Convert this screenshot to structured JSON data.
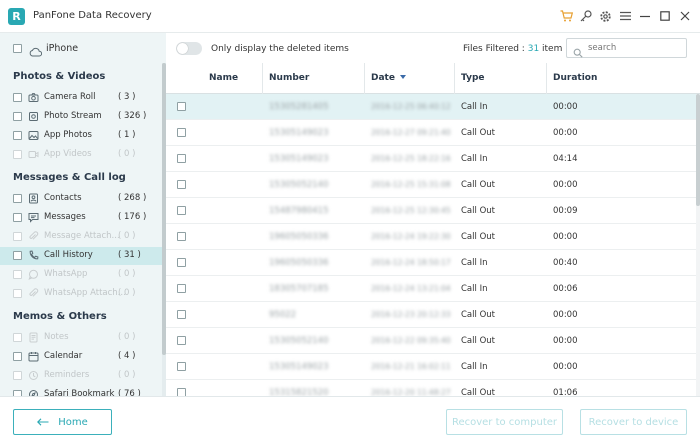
{
  "app": {
    "title": "PanFone Data Recovery",
    "logo_letter": "R",
    "accent_color": "#29a8b3"
  },
  "titlebar_icons": [
    "cart-icon",
    "key-icon",
    "gear-icon",
    "menu-icon",
    "minimize-icon",
    "maximize-icon",
    "close-icon"
  ],
  "device": {
    "name": "iPhone",
    "icon": "cloud-icon"
  },
  "toolbar": {
    "toggle_label": "Only display the deleted items",
    "toggle_on": false,
    "filtered_prefix": "Files Filtered : ",
    "filtered_count": "31",
    "filtered_suffix": " item (s)",
    "search_placeholder": "search"
  },
  "sidebar": {
    "sections": [
      {
        "title": "Photos & Videos",
        "items": [
          {
            "label": "Camera Roll",
            "count": "( 3 )",
            "icon": "camera-icon",
            "dim": false
          },
          {
            "label": "Photo Stream",
            "count": "( 326 )",
            "icon": "photo-stream-icon",
            "dim": false
          },
          {
            "label": "App Photos",
            "count": "( 1 )",
            "icon": "image-icon",
            "dim": false
          },
          {
            "label": "App Videos",
            "count": "( 0 )",
            "icon": "video-icon",
            "dim": true
          }
        ]
      },
      {
        "title": "Messages & Call log",
        "items": [
          {
            "label": "Contacts",
            "count": "( 268 )",
            "icon": "contacts-icon",
            "dim": false
          },
          {
            "label": "Messages",
            "count": "( 176 )",
            "icon": "message-icon",
            "dim": false
          },
          {
            "label": "Message Attach...",
            "count": "( 0 )",
            "icon": "attachment-icon",
            "dim": true
          },
          {
            "label": "Call History",
            "count": "( 31 )",
            "icon": "phone-icon",
            "dim": false,
            "selected": true
          },
          {
            "label": "WhatsApp",
            "count": "( 0 )",
            "icon": "whatsapp-icon",
            "dim": true
          },
          {
            "label": "WhatsApp Attach...",
            "count": "( 0 )",
            "icon": "attachment-icon",
            "dim": true
          }
        ]
      },
      {
        "title": "Memos & Others",
        "items": [
          {
            "label": "Notes",
            "count": "( 0 )",
            "icon": "notes-icon",
            "dim": true
          },
          {
            "label": "Calendar",
            "count": "( 4 )",
            "icon": "calendar-icon",
            "dim": false
          },
          {
            "label": "Reminders",
            "count": "( 0 )",
            "icon": "reminder-icon",
            "dim": true
          },
          {
            "label": "Safari Bookmark",
            "count": "( 76 )",
            "icon": "bookmark-icon",
            "dim": false
          }
        ]
      }
    ]
  },
  "table": {
    "headers": {
      "name": "Name",
      "number": "Number",
      "date": "Date",
      "type": "Type",
      "duration": "Duration"
    },
    "sort_icon": "sort-down-icon",
    "rows": [
      {
        "name": "",
        "number": "15305281405",
        "date": "2016-12-25 06:40:12",
        "type": "Call In",
        "duration": "00:00"
      },
      {
        "name": "",
        "number": "15305149023",
        "date": "2016-12-27 09:21:40",
        "type": "Call Out",
        "duration": "00:00"
      },
      {
        "name": "",
        "number": "15305149023",
        "date": "2016-12-25 18:22:16",
        "type": "Call In",
        "duration": "04:14"
      },
      {
        "name": "",
        "number": "15305052140",
        "date": "2016-12-25 15:31:08",
        "type": "Call Out",
        "duration": "00:00"
      },
      {
        "name": "",
        "number": "15487980415",
        "date": "2016-12-25 12:30:45",
        "type": "Call Out",
        "duration": "00:09"
      },
      {
        "name": "",
        "number": "19605050336",
        "date": "2016-12-24 19:22:30",
        "type": "Call Out",
        "duration": "00:00"
      },
      {
        "name": "",
        "number": "19605050336",
        "date": "2016-12-24 18:50:17",
        "type": "Call In",
        "duration": "00:40"
      },
      {
        "name": "",
        "number": "18305707185",
        "date": "2016-12-24 13:21:04",
        "type": "Call In",
        "duration": "00:06"
      },
      {
        "name": "",
        "number": "95022",
        "date": "2016-12-23 20:12:33",
        "type": "Call Out",
        "duration": "00:00"
      },
      {
        "name": "",
        "number": "15305052140",
        "date": "2016-12-22 09:35:40",
        "type": "Call Out",
        "duration": "00:00"
      },
      {
        "name": "",
        "number": "15305149023",
        "date": "2016-12-21 16:02:11",
        "type": "Call In",
        "duration": "00:00"
      },
      {
        "name": "",
        "number": "15315821520",
        "date": "2016-12-20 11:48:27",
        "type": "Call Out",
        "duration": "01:06"
      }
    ]
  },
  "footer": {
    "home_label": "Home",
    "recover_computer_label": "Recover to computer",
    "recover_device_label": "Recover to device"
  }
}
